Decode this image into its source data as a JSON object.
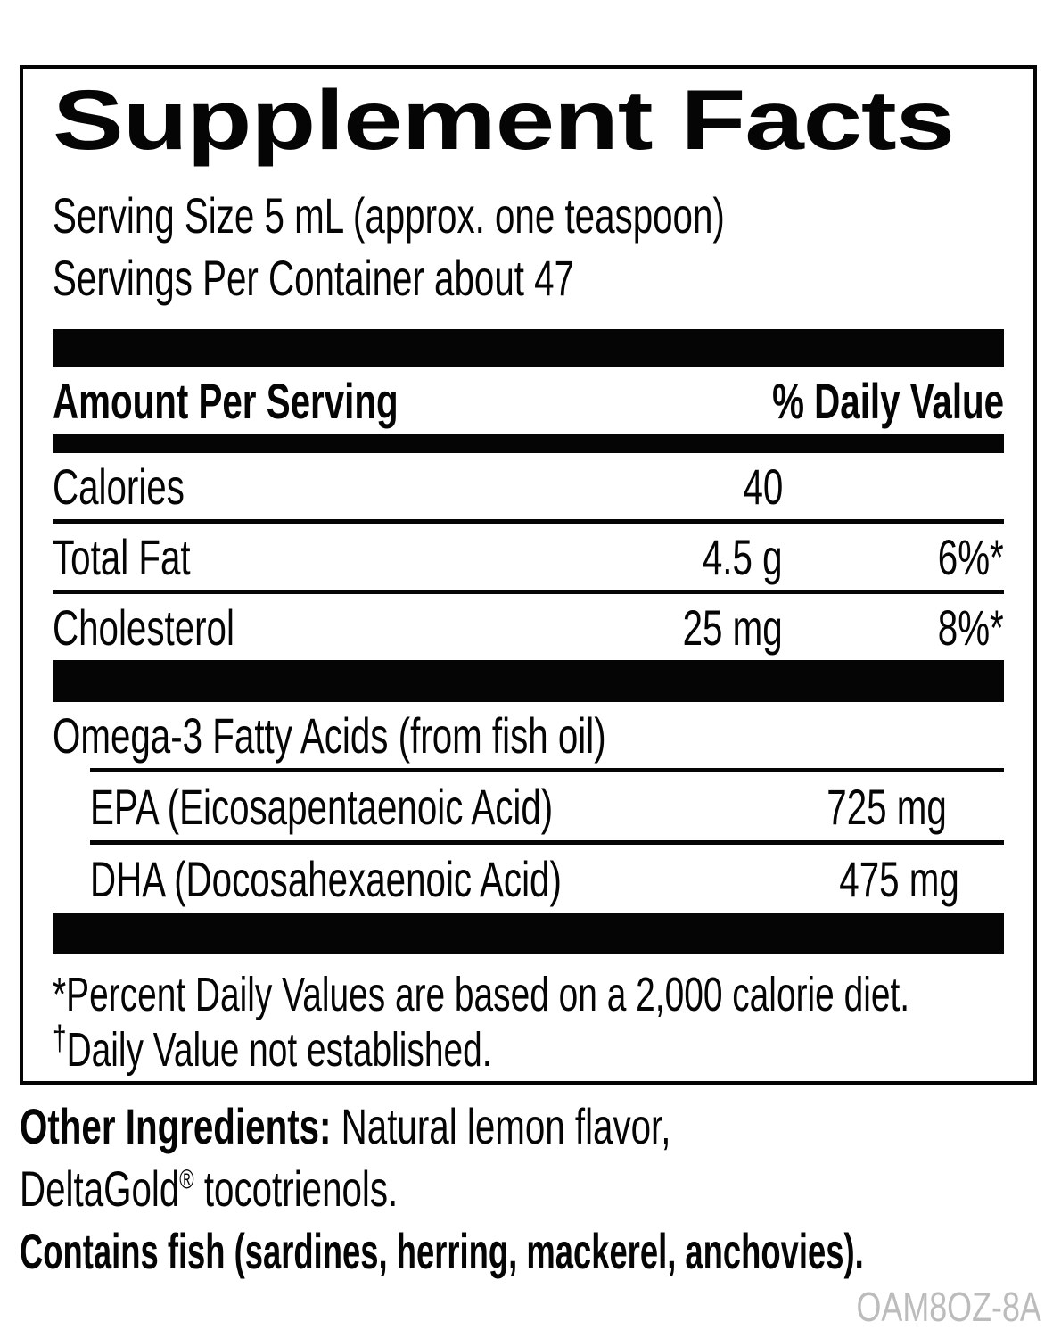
{
  "colors": {
    "ink": "#050505",
    "code_gray": "#bcbcbc"
  },
  "panel": {
    "title": "Supplement Facts",
    "serving_size": "Serving Size 5 mL (approx. one teaspoon)",
    "servings_per_container": "Servings Per Container about 47",
    "columns": {
      "amount_label": "Amount Per Serving",
      "daily_value_label": "% Daily Value"
    },
    "rows": [
      {
        "name": "Calories",
        "amount": "40",
        "dv": ""
      },
      {
        "name": "Total Fat",
        "amount": "4.5 g",
        "dv": "6%*"
      },
      {
        "name": "Cholesterol",
        "amount": "25 mg",
        "dv": "8%*"
      }
    ],
    "omega": {
      "heading": "Omega-3 Fatty Acids (from fish oil)",
      "rows": [
        {
          "name": "EPA (Eicosapentaenoic Acid)",
          "amount": "725 mg",
          "dv": "†"
        },
        {
          "name": "DHA (Docosahexaenoic Acid)",
          "amount": "475 mg",
          "dv": "†"
        }
      ]
    },
    "footnotes": {
      "percent_note": "*Percent Daily Values are based on a 2,000 calorie diet.",
      "dagger_symbol": "†",
      "dagger_note": "Daily Value not established."
    }
  },
  "other": {
    "label": "Other Ingredients:",
    "line1_rest": " Natural lemon flavor,",
    "line2_name": "DeltaGold",
    "line2_reg": "®",
    "line2_rest": " tocotrienols.",
    "contains": "Contains fish (sardines, herring, mackerel, anchovies)."
  },
  "product_code": "OAM8OZ-8A"
}
